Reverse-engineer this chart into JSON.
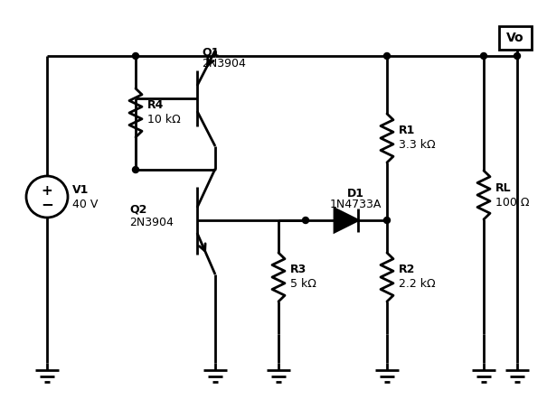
{
  "bg_color": "#ffffff",
  "lw": 2.0,
  "xL": 52,
  "xR4": 150,
  "xQbody": 218,
  "xR3": 308,
  "xD1L": 338,
  "xD1R": 428,
  "xR12": 428,
  "xRL": 535,
  "xVO": 572,
  "yTop": 62,
  "yGnd": 402,
  "yV1c": 218,
  "yR4b": 188,
  "Q1_bt": 78,
  "Q1_bb": 140,
  "Q1_by": 109,
  "Q2_bt": 207,
  "Q2_bb": 282,
  "Q2_by": 244,
  "yD1": 244,
  "yR1b": 244,
  "yR2b": 370,
  "yR3b": 370,
  "yRLb": 370,
  "yQ2emit": 318,
  "labels": {
    "V1": "V1",
    "V1_val": "40 V",
    "R1": "R1",
    "R1_val": "3.3 kΩ",
    "R2": "R2",
    "R2_val": "2.2 kΩ",
    "R3": "R3",
    "R3_val": "5 kΩ",
    "R4": "R4",
    "R4_val": "10 kΩ",
    "RL": "RL",
    "RL_val": "100 Ω",
    "D1": "D1",
    "D1_val": "1N4733A",
    "Q1": "Q1",
    "Q1_val": "2N3904",
    "Q2": "Q2",
    "Q2_val": "2N3904",
    "Vo": "Vo"
  }
}
